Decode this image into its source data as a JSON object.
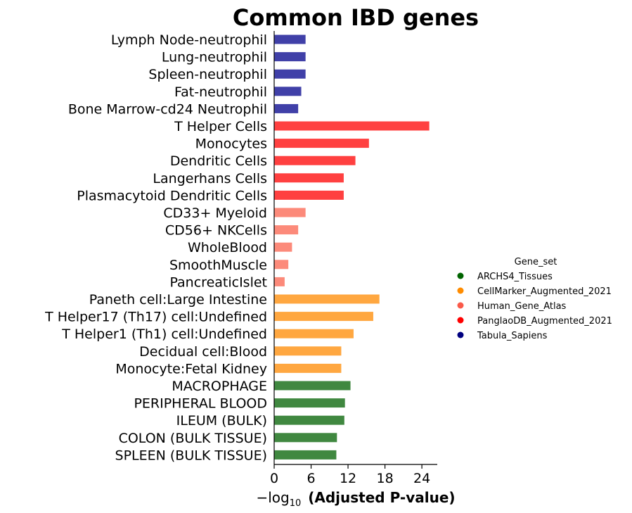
{
  "chart_data": {
    "type": "bar",
    "orientation": "horizontal",
    "title": "Common IBD genes",
    "xlabel_prefix": "−log",
    "xlabel_sub": "10",
    "xlabel_main": "(Adjusted P-value)",
    "xlim": [
      0,
      26.5
    ],
    "xticks": [
      0,
      6,
      12,
      18,
      24
    ],
    "grid": false,
    "legend_title": "Gene_set",
    "legend_position": "right",
    "legend": [
      {
        "name": "ARCHS4_Tissues",
        "color": "#006400"
      },
      {
        "name": "CellMarker_Augmented_2021",
        "color": "#ff8c00"
      },
      {
        "name": "Human_Gene_Atlas",
        "color": "#fa5a4a"
      },
      {
        "name": "PanglaoDB_Augmented_2021",
        "color": "#ff0000"
      },
      {
        "name": "Tabula_Sapiens",
        "color": "#000080"
      }
    ],
    "series_colors": {
      "Tabula_Sapiens": "#4040a8",
      "PanglaoDB_Augmented_2021": "#ff4040",
      "Human_Gene_Atlas": "#fc8a7a",
      "CellMarker_Augmented_2021": "#ffa740",
      "ARCHS4_Tissues": "#408840"
    },
    "bars": [
      {
        "label": "Lymph Node-neutrophil",
        "value": 5.1,
        "set": "Tabula_Sapiens"
      },
      {
        "label": "Lung-neutrophil",
        "value": 5.1,
        "set": "Tabula_Sapiens"
      },
      {
        "label": "Spleen-neutrophil",
        "value": 5.1,
        "set": "Tabula_Sapiens"
      },
      {
        "label": "Fat-neutrophil",
        "value": 4.4,
        "set": "Tabula_Sapiens"
      },
      {
        "label": "Bone Marrow-cd24 Neutrophil",
        "value": 3.9,
        "set": "Tabula_Sapiens"
      },
      {
        "label": "T Helper Cells",
        "value": 25.2,
        "set": "PanglaoDB_Augmented_2021"
      },
      {
        "label": "Monocytes",
        "value": 15.4,
        "set": "PanglaoDB_Augmented_2021"
      },
      {
        "label": "Dendritic Cells",
        "value": 13.2,
        "set": "PanglaoDB_Augmented_2021"
      },
      {
        "label": "Langerhans Cells",
        "value": 11.3,
        "set": "PanglaoDB_Augmented_2021"
      },
      {
        "label": "Plasmacytoid Dendritic Cells",
        "value": 11.3,
        "set": "PanglaoDB_Augmented_2021"
      },
      {
        "label": "CD33+ Myeloid",
        "value": 5.1,
        "set": "Human_Gene_Atlas"
      },
      {
        "label": "CD56+ NKCells",
        "value": 3.9,
        "set": "Human_Gene_Atlas"
      },
      {
        "label": "WholeBlood",
        "value": 2.9,
        "set": "Human_Gene_Atlas"
      },
      {
        "label": "SmoothMuscle",
        "value": 2.3,
        "set": "Human_Gene_Atlas"
      },
      {
        "label": "PancreaticIslet",
        "value": 1.7,
        "set": "Human_Gene_Atlas"
      },
      {
        "label": "Paneth cell:Large Intestine",
        "value": 17.1,
        "set": "CellMarker_Augmented_2021"
      },
      {
        "label": "T Helper17 (Th17) cell:Undefined",
        "value": 16.1,
        "set": "CellMarker_Augmented_2021"
      },
      {
        "label": "T Helper1 (Th1) cell:Undefined",
        "value": 12.9,
        "set": "CellMarker_Augmented_2021"
      },
      {
        "label": "Decidual cell:Blood",
        "value": 10.9,
        "set": "CellMarker_Augmented_2021"
      },
      {
        "label": "Monocyte:Fetal Kidney",
        "value": 10.9,
        "set": "CellMarker_Augmented_2021"
      },
      {
        "label": "MACROPHAGE",
        "value": 12.4,
        "set": "ARCHS4_Tissues"
      },
      {
        "label": "PERIPHERAL BLOOD",
        "value": 11.5,
        "set": "ARCHS4_Tissues"
      },
      {
        "label": "ILEUM (BULK)",
        "value": 11.4,
        "set": "ARCHS4_Tissues"
      },
      {
        "label": "COLON (BULK TISSUE)",
        "value": 10.2,
        "set": "ARCHS4_Tissues"
      },
      {
        "label": "SPLEEN (BULK TISSUE)",
        "value": 10.1,
        "set": "ARCHS4_Tissues"
      }
    ]
  }
}
